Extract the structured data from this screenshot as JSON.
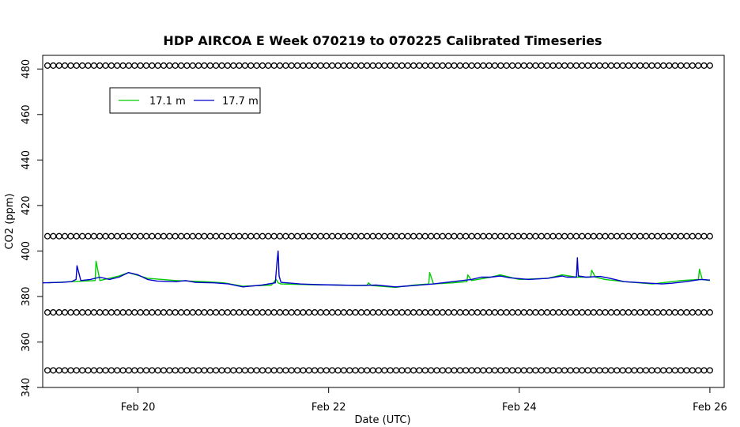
{
  "chart_data": {
    "type": "line",
    "title": "HDP AIRCOA E  Week 070219 to 070225  Calibrated Timeseries",
    "xlabel": "Date (UTC)",
    "ylabel": "CO2 (ppm)",
    "xlim": [
      19.0,
      26.15
    ],
    "ylim": [
      340,
      486
    ],
    "x_ticks": [
      {
        "value": 20,
        "label": "Feb 20"
      },
      {
        "value": 22,
        "label": "Feb 22"
      },
      {
        "value": 24,
        "label": "Feb 24"
      },
      {
        "value": 26,
        "label": "Feb 26"
      }
    ],
    "y_ticks": [
      340,
      360,
      380,
      400,
      420,
      440,
      460,
      480
    ],
    "legend": {
      "position": "top-left",
      "entries": [
        {
          "label": "17.1 m",
          "color": "#00cc00"
        },
        {
          "label": "17.7 m",
          "color": "#0000cc"
        }
      ]
    },
    "series": [
      {
        "name": "17.1 m",
        "color": "#00cc00",
        "x": [
          19.05,
          19.3,
          19.55,
          19.56,
          19.6,
          19.8,
          19.9,
          20.1,
          20.4,
          20.7,
          20.9,
          21.1,
          21.4,
          21.45,
          21.47,
          21.5,
          21.8,
          22.1,
          22.4,
          22.42,
          22.45,
          22.7,
          22.9,
          23.05,
          23.06,
          23.1,
          23.3,
          23.45,
          23.46,
          23.5,
          23.7,
          23.8,
          24.0,
          24.3,
          24.45,
          24.6,
          24.75,
          24.76,
          24.8,
          24.9,
          25.1,
          25.4,
          25.6,
          25.7,
          25.88,
          25.89,
          25.92,
          26.0
        ],
        "y": [
          386,
          386.5,
          387,
          395.5,
          387,
          389,
          390.5,
          388,
          387,
          386.5,
          386,
          384.5,
          385,
          387.5,
          386,
          385.5,
          385.2,
          385,
          384.8,
          386,
          384.8,
          384,
          385,
          385.5,
          390.5,
          385.5,
          386,
          386.5,
          389.5,
          387,
          388.5,
          389.5,
          387.5,
          388,
          389.5,
          388.5,
          388.5,
          391.5,
          388.5,
          387.5,
          386.5,
          385.5,
          386.5,
          387,
          387.5,
          392,
          387.5,
          387
        ]
      },
      {
        "name": "17.7 m",
        "color": "#0000cc",
        "x": [
          19.0,
          19.2,
          19.3,
          19.35,
          19.36,
          19.4,
          19.5,
          19.6,
          19.7,
          19.8,
          19.9,
          20.0,
          20.1,
          20.2,
          20.4,
          20.5,
          20.6,
          20.8,
          20.95,
          21.1,
          21.3,
          21.44,
          21.46,
          21.47,
          21.48,
          21.5,
          21.7,
          21.9,
          22.1,
          22.3,
          22.5,
          22.7,
          22.9,
          23.1,
          23.3,
          23.5,
          23.6,
          23.7,
          23.8,
          23.9,
          24.1,
          24.3,
          24.45,
          24.5,
          24.6,
          24.61,
          24.62,
          24.7,
          24.85,
          24.95,
          25.1,
          25.3,
          25.5,
          25.6,
          25.75,
          25.9,
          26.0
        ],
        "y": [
          386,
          386.2,
          386.5,
          387.5,
          393.5,
          387,
          387.5,
          388.5,
          387.5,
          388.5,
          390.5,
          389.5,
          387.5,
          386.8,
          386.5,
          387,
          386.2,
          386,
          385.5,
          384.2,
          385,
          386,
          396,
          400,
          389,
          386.2,
          385.5,
          385.2,
          385,
          384.8,
          385,
          384.2,
          384.8,
          385.5,
          386.5,
          387.5,
          388.5,
          388.5,
          389,
          388.2,
          387.5,
          388,
          389,
          388.5,
          388.5,
          397,
          389,
          388.5,
          388.8,
          388,
          386.5,
          386,
          385.5,
          385.8,
          386.5,
          387.5,
          387.2
        ]
      }
    ],
    "reference_points": [
      {
        "y": 481.5,
        "x_start": 19.05,
        "x_end": 26.0,
        "count": 115
      },
      {
        "y": 406.5,
        "x_start": 19.05,
        "x_end": 26.0,
        "count": 115
      },
      {
        "y": 373.0,
        "x_start": 19.05,
        "x_end": 26.0,
        "count": 115
      },
      {
        "y": 347.5,
        "x_start": 19.05,
        "x_end": 26.0,
        "count": 115
      }
    ]
  }
}
